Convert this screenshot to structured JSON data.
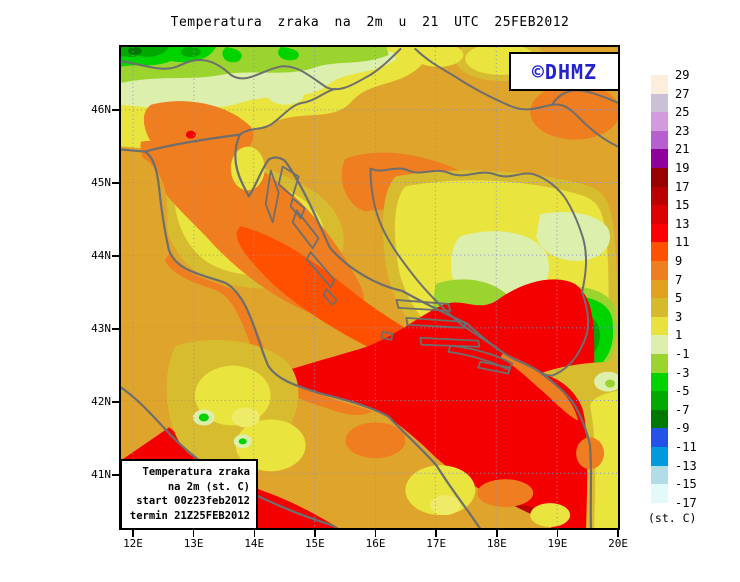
{
  "title": "Temperatura zraka na 2m u 21 UTC 25FEB2012",
  "logo": {
    "text": "©DHMZ"
  },
  "info_box": {
    "lines": [
      "Temperatura zraka",
      "na 2m (st. C)",
      "start 00z23feb2012",
      "termin 21Z25FEB2012"
    ]
  },
  "axes": {
    "x_tick_labels": [
      "12E",
      "13E",
      "14E",
      "15E",
      "16E",
      "17E",
      "18E",
      "19E",
      "20E"
    ],
    "y_tick_labels": [
      "46N",
      "45N",
      "44N",
      "43N",
      "42N",
      "41N"
    ]
  },
  "legend": {
    "unit": "(st. C)",
    "entries": [
      {
        "value": "29",
        "color": "#fceedd"
      },
      {
        "value": "27",
        "color": "#cbc1d7"
      },
      {
        "value": "25",
        "color": "#d49ade"
      },
      {
        "value": "23",
        "color": "#b85fd0"
      },
      {
        "value": "21",
        "color": "#8f009b"
      },
      {
        "value": "19",
        "color": "#980000"
      },
      {
        "value": "17",
        "color": "#bb0000"
      },
      {
        "value": "15",
        "color": "#dc0000"
      },
      {
        "value": "13",
        "color": "#fb0000"
      },
      {
        "value": "11",
        "color": "#ff5000"
      },
      {
        "value": "9",
        "color": "#ee7e20"
      },
      {
        "value": "7",
        "color": "#dfa21f"
      },
      {
        "value": "5",
        "color": "#d5bb2b"
      },
      {
        "value": "3",
        "color": "#e7e23d"
      },
      {
        "value": "1",
        "color": "#dcefad"
      },
      {
        "value": "-1",
        "color": "#9cd42f"
      },
      {
        "value": "-3",
        "color": "#00d400"
      },
      {
        "value": "-5",
        "color": "#00a800"
      },
      {
        "value": "-7",
        "color": "#007700"
      },
      {
        "value": "-9",
        "color": "#2451e7"
      },
      {
        "value": "-11",
        "color": "#009bdb"
      },
      {
        "value": "-13",
        "color": "#b2dde6"
      },
      {
        "value": "-15",
        "color": "#e2fafa"
      },
      {
        "value": "-17",
        "color": "#ffffff"
      }
    ]
  },
  "map_colors": {
    "land_base": "#dfa42c",
    "warm_sea_red": "#f50000",
    "grid_line": "#8894c8",
    "coastline_gray": "#6e6e6e"
  }
}
